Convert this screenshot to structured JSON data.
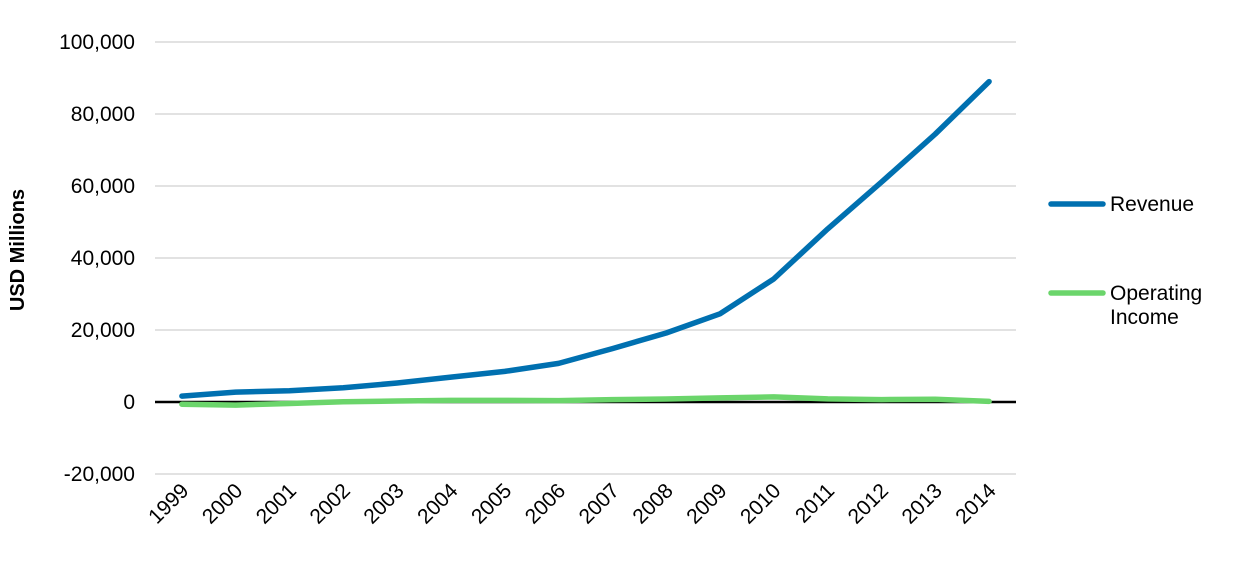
{
  "chart_data": {
    "type": "line",
    "title": "",
    "xlabel": "",
    "ylabel": "USD Millions",
    "categories": [
      "1999",
      "2000",
      "2001",
      "2002",
      "2003",
      "2004",
      "2005",
      "2006",
      "2007",
      "2008",
      "2009",
      "2010",
      "2011",
      "2012",
      "2013",
      "2014"
    ],
    "ylim": [
      -20000,
      100000
    ],
    "yticks": [
      -20000,
      0,
      20000,
      40000,
      60000,
      80000,
      100000
    ],
    "ytick_labels": [
      "-20,000",
      "0",
      "20,000",
      "40,000",
      "60,000",
      "80,000",
      "100,000"
    ],
    "grid": "horizontal",
    "legend_position": "right",
    "series": [
      {
        "name": "Revenue",
        "color": "#0070B0",
        "values": [
          1640,
          2762,
          3122,
          3933,
          5264,
          6921,
          8490,
          10711,
          14835,
          19166,
          24509,
          34204,
          48077,
          61093,
          74452,
          88988
        ]
      },
      {
        "name": "Operating Income",
        "legend_lines": [
          "Operating",
          "Income"
        ],
        "color": "#6BD56B",
        "values": [
          -605,
          -864,
          -412,
          64,
          271,
          440,
          432,
          389,
          655,
          842,
          1129,
          1406,
          862,
          676,
          745,
          178
        ]
      }
    ]
  }
}
